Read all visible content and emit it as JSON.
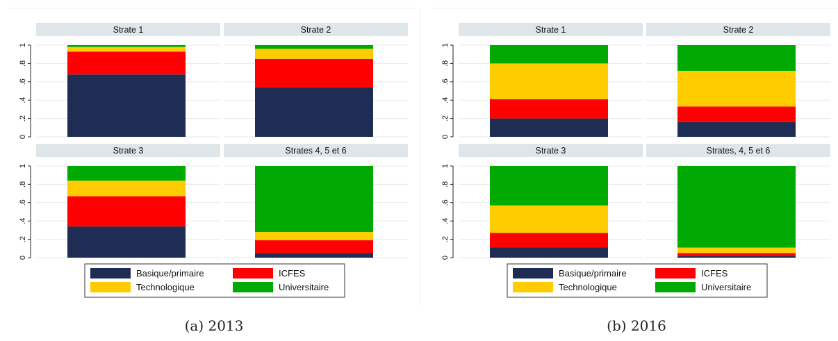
{
  "colors": {
    "Basique/primaire": "#1f2d54",
    "ICFES": "#ff0000",
    "Technologique": "#ffcc00",
    "Universitaire": "#00aa00",
    "panel_header": "#dfe6ea",
    "grid": "#e6eaec"
  },
  "chart_data": [
    {
      "type": "bar",
      "stacked": true,
      "caption": "(a) 2013",
      "series_order": [
        "Basique/primaire",
        "ICFES",
        "Technologique",
        "Universitaire"
      ],
      "ylim": [
        0,
        1
      ],
      "yticks": [
        "0",
        ".2",
        ".4",
        ".6",
        ".8",
        "1"
      ],
      "grid": true,
      "legend": {
        "position": "bottom",
        "entries": [
          "Basique/primaire",
          "ICFES",
          "Technologique",
          "Universitaire"
        ]
      },
      "panels": [
        {
          "title": "Strate 1",
          "values": {
            "Basique/primaire": 0.68,
            "ICFES": 0.25,
            "Technologique": 0.05,
            "Universitaire": 0.02
          }
        },
        {
          "title": "Strate 2",
          "values": {
            "Basique/primaire": 0.54,
            "ICFES": 0.31,
            "Technologique": 0.11,
            "Universitaire": 0.04
          }
        },
        {
          "title": "Strate 3",
          "values": {
            "Basique/primaire": 0.34,
            "ICFES": 0.33,
            "Technologique": 0.17,
            "Universitaire": 0.16
          }
        },
        {
          "title": "Strates 4, 5 et 6",
          "values": {
            "Basique/primaire": 0.05,
            "ICFES": 0.14,
            "Technologique": 0.09,
            "Universitaire": 0.72
          }
        }
      ]
    },
    {
      "type": "bar",
      "stacked": true,
      "caption": "(b) 2016",
      "series_order": [
        "Basique/primaire",
        "ICFES",
        "Technologique",
        "Universitaire"
      ],
      "ylim": [
        0,
        1
      ],
      "yticks": [
        "0",
        ".2",
        ".4",
        ".6",
        ".8",
        "1"
      ],
      "grid": true,
      "legend": {
        "position": "bottom",
        "entries": [
          "Basique/primaire",
          "ICFES",
          "Technologique",
          "Universitaire"
        ]
      },
      "panels": [
        {
          "title": "Strate 1",
          "values": {
            "Basique/primaire": 0.2,
            "ICFES": 0.21,
            "Technologique": 0.39,
            "Universitaire": 0.2
          }
        },
        {
          "title": "Strate 2",
          "values": {
            "Basique/primaire": 0.16,
            "ICFES": 0.17,
            "Technologique": 0.39,
            "Universitaire": 0.28
          }
        },
        {
          "title": "Strate 3",
          "values": {
            "Basique/primaire": 0.11,
            "ICFES": 0.16,
            "Technologique": 0.3,
            "Universitaire": 0.43
          }
        },
        {
          "title": "Strates, 4, 5 et 6",
          "values": {
            "Basique/primaire": 0.02,
            "ICFES": 0.03,
            "Technologique": 0.06,
            "Universitaire": 0.89
          }
        }
      ]
    }
  ]
}
